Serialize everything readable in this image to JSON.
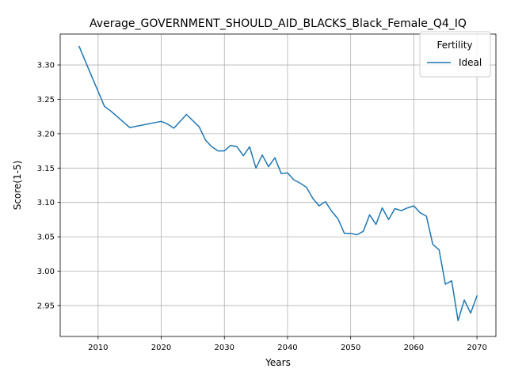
{
  "chart_data": {
    "type": "line",
    "title": "Average_GOVERNMENT_SHOULD_AID_BLACKS_Black_Female_Q4_IQ",
    "xlabel": "Years",
    "ylabel": "Score(1-5)",
    "xlim": [
      2004,
      2073
    ],
    "ylim": [
      2.905,
      3.345
    ],
    "xticks": [
      2010,
      2020,
      2030,
      2040,
      2050,
      2060,
      2070
    ],
    "yticks": [
      2.95,
      3.0,
      3.05,
      3.1,
      3.15,
      3.2,
      3.25,
      3.3
    ],
    "xtick_labels": [
      "2010",
      "2020",
      "2030",
      "2040",
      "2050",
      "2060",
      "2070"
    ],
    "ytick_labels": [
      "2.95",
      "3.00",
      "3.05",
      "3.10",
      "3.15",
      "3.20",
      "3.25",
      "3.30"
    ],
    "grid": true,
    "legend": {
      "title": "Fertility",
      "position": "top-right"
    },
    "series": [
      {
        "name": "Ideal",
        "color": "#1f77b4",
        "x": [
          2007,
          2009,
          2011,
          2012,
          2015,
          2020,
          2021,
          2022,
          2024,
          2026,
          2027,
          2028,
          2029,
          2030,
          2031,
          2032,
          2033,
          2034,
          2035,
          2036,
          2037,
          2038,
          2039,
          2040,
          2041,
          2042,
          2043,
          2044,
          2045,
          2046,
          2047,
          2048,
          2049,
          2050,
          2051,
          2052,
          2053,
          2054,
          2055,
          2056,
          2057,
          2058,
          2059,
          2060,
          2061,
          2062,
          2063,
          2064,
          2065,
          2066,
          2067,
          2068,
          2069,
          2070
        ],
        "values": [
          3.327,
          3.283,
          3.24,
          3.233,
          3.209,
          3.218,
          3.214,
          3.208,
          3.228,
          3.21,
          3.191,
          3.181,
          3.175,
          3.175,
          3.183,
          3.181,
          3.168,
          3.181,
          3.15,
          3.169,
          3.152,
          3.165,
          3.142,
          3.143,
          3.133,
          3.128,
          3.122,
          3.106,
          3.095,
          3.101,
          3.087,
          3.076,
          3.055,
          3.055,
          3.053,
          3.058,
          3.082,
          3.068,
          3.092,
          3.075,
          3.091,
          3.088,
          3.092,
          3.095,
          3.085,
          3.08,
          3.039,
          3.031,
          2.981,
          2.986,
          2.928,
          2.958,
          2.939,
          2.964
        ]
      }
    ]
  }
}
